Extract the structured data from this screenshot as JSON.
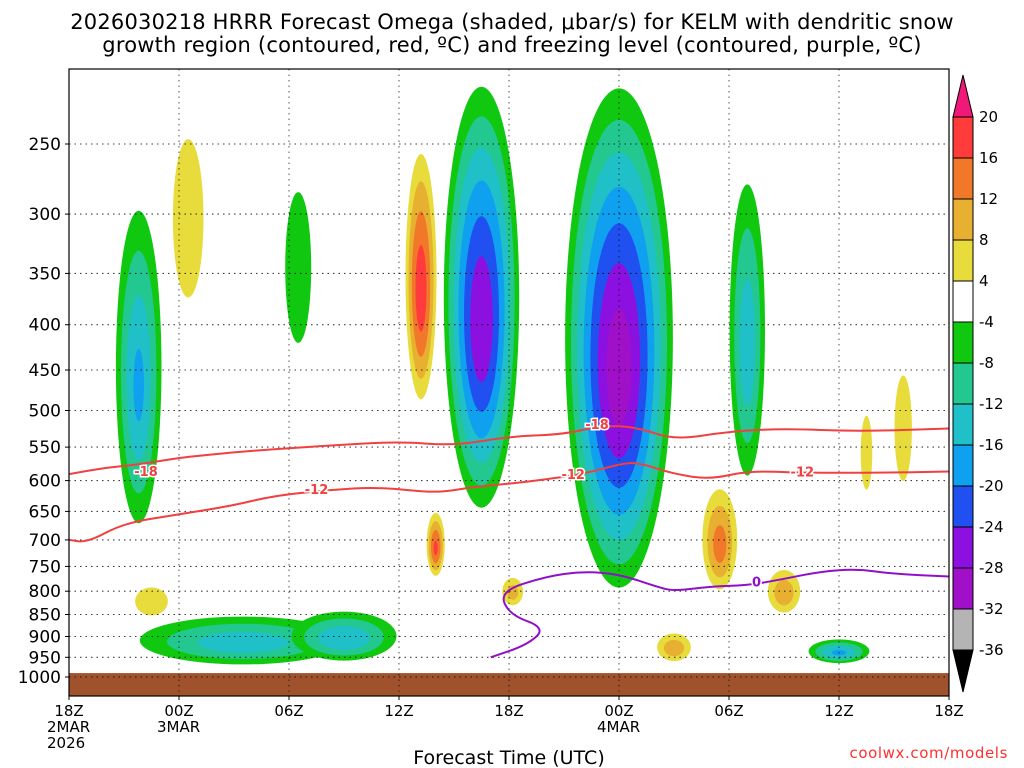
{
  "title_line1": "2026030218 HRRR Forecast Omega (shaded, μbar/s) for KELM with dendritic snow",
  "title_line2": "growth region (contoured, red, ºC) and freezing level (contoured, purple, ºC)",
  "credit": "coolwx.com/models",
  "chart_data": {
    "type": "time-height contour",
    "title": "2026030218 HRRR Forecast Omega (shaded, μbar/s) for KELM with dendritic snow growth region (contoured, red, ºC) and freezing level (contoured, purple, ºC)",
    "xlabel": "Forecast Time (UTC)",
    "ylabel": "",
    "x_range_hours": [
      0,
      48
    ],
    "y_range_hpa": [
      1000,
      200
    ],
    "y_scale": "pressure (log)",
    "y_ticks": [
      250,
      300,
      350,
      400,
      450,
      500,
      550,
      600,
      650,
      700,
      750,
      800,
      850,
      900,
      950,
      1000
    ],
    "x_ticks": [
      {
        "hour": 0,
        "lines": [
          "18Z",
          "2MAR",
          "2026"
        ]
      },
      {
        "hour": 6,
        "lines": [
          "00Z",
          "3MAR"
        ]
      },
      {
        "hour": 12,
        "lines": [
          "06Z"
        ]
      },
      {
        "hour": 18,
        "lines": [
          "12Z"
        ]
      },
      {
        "hour": 24,
        "lines": [
          "18Z"
        ]
      },
      {
        "hour": 30,
        "lines": [
          "00Z",
          "4MAR"
        ]
      },
      {
        "hour": 36,
        "lines": [
          "06Z"
        ]
      },
      {
        "hour": 42,
        "lines": [
          "12Z"
        ]
      },
      {
        "hour": 48,
        "lines": [
          "18Z"
        ]
      }
    ],
    "colorbar": {
      "ticks": [
        "20",
        "16",
        "12",
        "8",
        "4",
        "-4",
        "-8",
        "-12",
        "-16",
        "-20",
        "-24",
        "-28",
        "-32",
        "-36"
      ],
      "bins": [
        {
          "lo": 16,
          "hi": 20,
          "color": "#ff3b3b"
        },
        {
          "lo": 12,
          "hi": 16,
          "color": "#f07828"
        },
        {
          "lo": 8,
          "hi": 12,
          "color": "#e8b030"
        },
        {
          "lo": 4,
          "hi": 8,
          "color": "#e8dc3c"
        },
        {
          "lo": -4,
          "hi": 4,
          "color": "#ffffff"
        },
        {
          "lo": -8,
          "hi": -4,
          "color": "#10c810"
        },
        {
          "lo": -12,
          "hi": -8,
          "color": "#22c890"
        },
        {
          "lo": -16,
          "hi": -12,
          "color": "#20c0c8"
        },
        {
          "lo": -20,
          "hi": -16,
          "color": "#10a0f0"
        },
        {
          "lo": -24,
          "hi": -20,
          "color": "#2050f0"
        },
        {
          "lo": -28,
          "hi": -24,
          "color": "#8c10e0"
        },
        {
          "lo": -32,
          "hi": -28,
          "color": "#a010c8"
        },
        {
          "lo": -36,
          "hi": -32,
          "color": "#b4b4b4"
        }
      ],
      "over_color": "#f01878",
      "under_color": "#000000"
    },
    "terrain": {
      "top_hpa": 990,
      "color": "#a0522d"
    },
    "omega_features": [
      {
        "hour": 3.8,
        "hpa_top": 270,
        "hpa_bottom": 720,
        "width_h": 3.0,
        "peak": -16
      },
      {
        "hour": 6.5,
        "hpa_top": 210,
        "hpa_bottom": 420,
        "width_h": 2.8,
        "peak": 6
      },
      {
        "hour": 4.5,
        "hpa_top": 770,
        "hpa_bottom": 870,
        "width_h": 3.0,
        "peak": 6
      },
      {
        "hour": 9.5,
        "hpa_top": 840,
        "hpa_bottom": 980,
        "width_h": 14.0,
        "peak": -14
      },
      {
        "hour": 12.5,
        "hpa_top": 250,
        "hpa_bottom": 460,
        "width_h": 2.2,
        "peak": -7
      },
      {
        "hour": 15.0,
        "hpa_top": 830,
        "hpa_bottom": 970,
        "width_h": 7.0,
        "peak": -15
      },
      {
        "hour": 19.2,
        "hpa_top": 240,
        "hpa_bottom": 510,
        "width_h": 2.0,
        "peak": 18
      },
      {
        "hour": 20.0,
        "hpa_top": 640,
        "hpa_bottom": 780,
        "width_h": 1.2,
        "peak": 16
      },
      {
        "hour": 22.5,
        "hpa_top": 200,
        "hpa_bottom": 680,
        "width_h": 4.6,
        "peak": -27
      },
      {
        "hour": 24.2,
        "hpa_top": 760,
        "hpa_bottom": 840,
        "width_h": 1.6,
        "peak": 9
      },
      {
        "hour": 30.0,
        "hpa_top": 200,
        "hpa_bottom": 840,
        "width_h": 6.5,
        "peak": -30
      },
      {
        "hour": 33.0,
        "hpa_top": 880,
        "hpa_bottom": 970,
        "width_h": 2.5,
        "peak": 10
      },
      {
        "hour": 35.5,
        "hpa_top": 590,
        "hpa_bottom": 820,
        "width_h": 2.4,
        "peak": 13
      },
      {
        "hour": 37.0,
        "hpa_top": 250,
        "hpa_bottom": 640,
        "width_h": 2.4,
        "peak": -14
      },
      {
        "hour": 39.0,
        "hpa_top": 740,
        "hpa_bottom": 860,
        "width_h": 2.4,
        "peak": 10
      },
      {
        "hour": 42.0,
        "hpa_top": 900,
        "hpa_bottom": 970,
        "width_h": 4.0,
        "peak": -16
      },
      {
        "hour": 43.5,
        "hpa_top": 460,
        "hpa_bottom": 660,
        "width_h": 1.2,
        "peak": 5
      },
      {
        "hour": 45.5,
        "hpa_top": 410,
        "hpa_bottom": 650,
        "width_h": 1.6,
        "peak": 6
      }
    ],
    "series": [
      {
        "name": "-18",
        "color": "#f04040",
        "points": [
          [
            0,
            590
          ],
          [
            2,
            580
          ],
          [
            4,
            575
          ],
          [
            6,
            565
          ],
          [
            10,
            555
          ],
          [
            14,
            548
          ],
          [
            18,
            542
          ],
          [
            21,
            548
          ],
          [
            24,
            535
          ],
          [
            27,
            532
          ],
          [
            29,
            520
          ],
          [
            31,
            522
          ],
          [
            33,
            540
          ],
          [
            36,
            528
          ],
          [
            39,
            524
          ],
          [
            43,
            528
          ],
          [
            48,
            524
          ]
        ]
      },
      {
        "name": "-12",
        "color": "#f04040",
        "points": [
          [
            0,
            700
          ],
          [
            1,
            705
          ],
          [
            3,
            670
          ],
          [
            6,
            655
          ],
          [
            9,
            640
          ],
          [
            11,
            625
          ],
          [
            14,
            615
          ],
          [
            17,
            610
          ],
          [
            20,
            620
          ],
          [
            22,
            610
          ],
          [
            24,
            605
          ],
          [
            26,
            598
          ],
          [
            28,
            590
          ],
          [
            30,
            575
          ],
          [
            31,
            572
          ],
          [
            33,
            590
          ],
          [
            35,
            598
          ],
          [
            37,
            585
          ],
          [
            40,
            588
          ],
          [
            44,
            588
          ],
          [
            48,
            586
          ]
        ]
      },
      {
        "name": "0",
        "color": "#9010c8",
        "points": [
          [
            23,
            950
          ],
          [
            25,
            920
          ],
          [
            26,
            880
          ],
          [
            24,
            850
          ],
          [
            23.5,
            800
          ],
          [
            26,
            770
          ],
          [
            28,
            760
          ],
          [
            30,
            765
          ],
          [
            32,
            790
          ],
          [
            33,
            800
          ],
          [
            35,
            790
          ],
          [
            37,
            788
          ],
          [
            39,
            775
          ],
          [
            41,
            760
          ],
          [
            43,
            755
          ],
          [
            45,
            765
          ],
          [
            48,
            770
          ]
        ]
      }
    ],
    "contour_labels": [
      {
        "text": "-18",
        "hour": 4.2,
        "hpa": 585
      },
      {
        "text": "-12",
        "hour": 13.5,
        "hpa": 613
      },
      {
        "text": "-18",
        "hour": 28.8,
        "hpa": 518
      },
      {
        "text": "-12",
        "hour": 27.5,
        "hpa": 590
      },
      {
        "text": "-12",
        "hour": 40.0,
        "hpa": 586
      },
      {
        "text": "0",
        "hour": 37.5,
        "hpa": 780
      }
    ]
  }
}
